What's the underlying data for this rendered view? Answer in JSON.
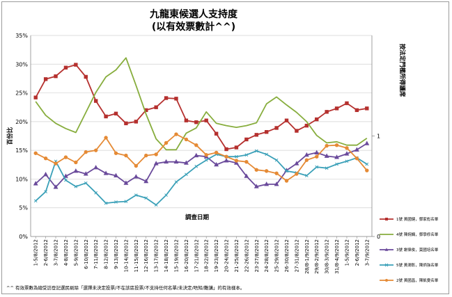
{
  "chart_data": {
    "type": "line",
    "title": "九龍東候選人支持度",
    "subtitle": "(以有效票數計^^)",
    "xlabel": "調查日期",
    "ylabel": "百份比",
    "y2label": "按法定門檻所得議席",
    "ylim": [
      0,
      35
    ],
    "yticks": [
      "0%",
      "5%",
      "10%",
      "15%",
      "20%",
      "25%",
      "30%",
      "35%"
    ],
    "y2lim": [
      0,
      2
    ],
    "y2ticks": [
      "0",
      "1"
    ],
    "grid": true,
    "legend_position": "right",
    "categories": [
      "1-5/8/2012",
      "2-6/8/2012",
      "3-7/8/2012",
      "4-8/8/2012",
      "5-9/8/2012",
      "6-10/8/2012",
      "7-11/8/2012",
      "8-12/8/2012",
      "9-13/8/2012",
      "10-14/8/2012",
      "11-15/8/2012",
      "12-16/8/2012",
      "13-17/8/2012",
      "14-18/8/2012",
      "15-19/8/2012",
      "16-20/8/2012",
      "17-21/8/2012",
      "18-22/8/2012",
      "19-23/8/2012",
      "20-24/8/2012",
      "21-25/8/2012",
      "22-26/8/2012",
      "23-27/8/2012",
      "24-28/8/2012",
      "25-29/8/2012",
      "26-30/8/2012",
      "27-31/8/2012",
      "28/8-1/9/2012",
      "29/8-2/9/2012",
      "30/8-3/9/2012",
      "31/8-4/9/2012",
      "1-5/9/2012",
      "2-6/9/2012",
      "3-7/9/2012"
    ],
    "series": [
      {
        "name": "1號 黃國健，鄧家彪名單",
        "color": "#b5302e",
        "marker": "square",
        "values": [
          24.2,
          27.4,
          27.9,
          29.4,
          29.9,
          27.8,
          23.6,
          20.9,
          21.4,
          19.7,
          20.0,
          22.0,
          22.5,
          24.1,
          24.0,
          20.2,
          19.9,
          20.2,
          17.9,
          15.2,
          15.5,
          16.9,
          17.7,
          18.2,
          18.9,
          20.2,
          18.4,
          19.3,
          20.4,
          21.7,
          22.3,
          23.2,
          22.0,
          22.3
        ]
      },
      {
        "name": "4號 陳婉嫻，鄧學修名單",
        "color": "#87ad3d",
        "marker": "none",
        "values": [
          23.5,
          21.1,
          19.7,
          18.8,
          18.1,
          21.6,
          25.1,
          27.8,
          29.0,
          31.1,
          26.3,
          21.3,
          17.0,
          15.1,
          15.1,
          18.0,
          18.9,
          21.7,
          19.7,
          19.3,
          19.0,
          19.3,
          19.8,
          23.1,
          24.3,
          22.9,
          21.6,
          20.0,
          17.6,
          16.3,
          16.5,
          15.9,
          15.9,
          17.1
        ]
      },
      {
        "name": "3號 謝偉俊，莫國培名單",
        "color": "#6a4a9b",
        "marker": "triangle",
        "values": [
          9.2,
          10.8,
          8.6,
          10.5,
          11.4,
          10.9,
          12.0,
          11.0,
          10.6,
          9.3,
          10.4,
          9.6,
          12.7,
          13.0,
          13.0,
          12.8,
          14.1,
          13.9,
          12.5,
          13.2,
          12.8,
          10.5,
          8.7,
          9.1,
          9.1,
          11.5,
          12.7,
          14.2,
          14.6,
          14.0,
          13.8,
          14.4,
          15.1,
          16.2
        ]
      },
      {
        "name": "5號 黃潤彰，陳炳強名單",
        "color": "#3aa0b8",
        "marker": "x",
        "values": [
          6.2,
          7.8,
          13.1,
          9.8,
          8.7,
          9.3,
          7.6,
          5.8,
          6.0,
          6.1,
          7.2,
          6.7,
          5.5,
          7.2,
          9.5,
          10.8,
          12.2,
          13.3,
          14.3,
          13.9,
          13.9,
          14.2,
          14.9,
          14.3,
          13.3,
          11.4,
          11.1,
          10.6,
          12.1,
          11.9,
          12.6,
          13.1,
          13.7,
          12.6
        ]
      },
      {
        "name": "2號 黃國昌，陳凱雯名單",
        "color": "#e58a35",
        "marker": "circle",
        "values": [
          14.5,
          13.6,
          12.7,
          13.8,
          12.9,
          14.7,
          15.0,
          17.2,
          14.5,
          14.1,
          12.3,
          14.1,
          14.3,
          16.3,
          17.8,
          16.9,
          15.9,
          14.2,
          14.6,
          13.9,
          13.2,
          13.0,
          11.6,
          11.4,
          11.0,
          9.7,
          10.9,
          13.3,
          13.9,
          15.8,
          15.9,
          15.4,
          13.6,
          11.5
        ]
      }
    ]
  },
  "footnote": "^^ 有效票數為總受訪登記選民剔除「選擇未決定投票/不在該區投票/不支持任何名單/未決定/唔知/難講」的有效樣本。"
}
